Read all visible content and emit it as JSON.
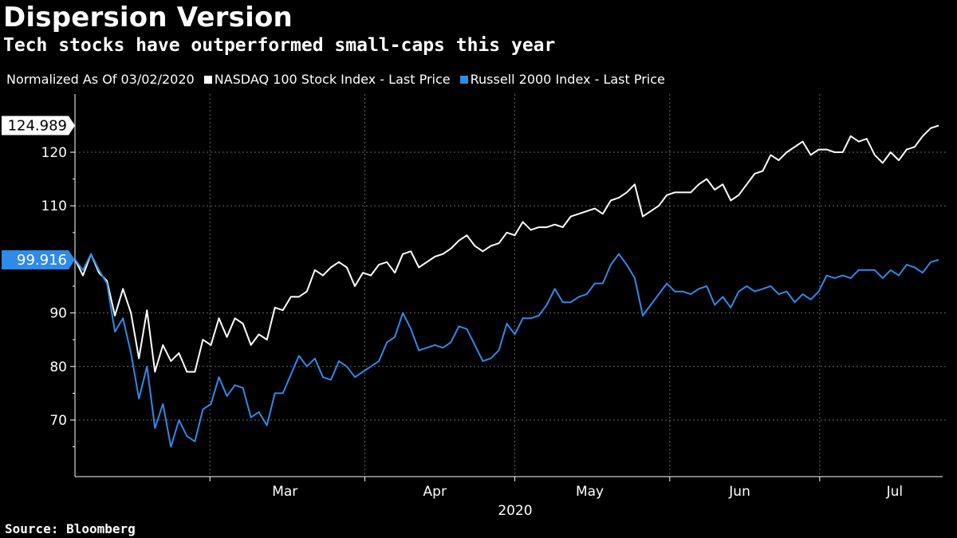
{
  "title": "Dispersion Version",
  "subtitle": "Tech stocks have outperformed small-caps this year",
  "legend": {
    "prefix": "Normalized As Of 03/02/2020",
    "series1": "NASDAQ 100 Stock Index - Last Price",
    "series2": "Russell 2000 Index - Last Price"
  },
  "source": "Source: Bloomberg",
  "colors": {
    "nasdaq": "#ffffff",
    "russell": "#2f8ae8",
    "grid": "#666666",
    "background": "#000000"
  },
  "chart_data": {
    "type": "line",
    "title": "Dispersion Version",
    "subtitle": "Tech stocks have outperformed small-caps this year",
    "xlabel": "2020",
    "ylabel": "",
    "x_start_date": "2020-02-03",
    "x_end_date": "2020-07-24",
    "x_month_labels": [
      {
        "label": "Mar",
        "date": "2020-03-16"
      },
      {
        "label": "Apr",
        "date": "2020-04-15"
      },
      {
        "label": "May",
        "date": "2020-05-16"
      },
      {
        "label": "Jun",
        "date": "2020-06-15"
      },
      {
        "label": "Jul",
        "date": "2020-07-16"
      }
    ],
    "x_month_boundaries": [
      "2020-03-01",
      "2020-04-01",
      "2020-05-01",
      "2020-06-01",
      "2020-07-01"
    ],
    "x_year_label": "2020",
    "ylim": [
      60,
      130
    ],
    "yticks": [
      70,
      80,
      90,
      110,
      120
    ],
    "grid": true,
    "last_values": {
      "nasdaq": "124.989",
      "russell": "99.916"
    },
    "series": [
      {
        "name": "NASDAQ 100 Stock Index - Last Price",
        "key": "nasdaq",
        "values": [
          100.0,
          97.0,
          101.0,
          97.5,
          96.0,
          89.5,
          94.5,
          90.0,
          81.5,
          90.5,
          79.0,
          84.0,
          81.0,
          82.5,
          79.0,
          79.0,
          85.0,
          84.0,
          89.0,
          85.5,
          89.0,
          88.0,
          84.0,
          86.0,
          85.0,
          91.0,
          90.5,
          93.0,
          93.0,
          94.0,
          98.0,
          97.0,
          98.5,
          99.5,
          98.5,
          95.0,
          97.5,
          97.0,
          99.0,
          99.5,
          97.5,
          101.0,
          101.5,
          98.5,
          99.5,
          100.5,
          101.0,
          102.0,
          103.5,
          104.5,
          102.5,
          101.5,
          102.5,
          103.0,
          105.0,
          104.5,
          107.0,
          105.5,
          106.0,
          106.0,
          106.5,
          106.0,
          108.0,
          108.5,
          109.0,
          109.5,
          108.5,
          111.0,
          111.5,
          112.5,
          114.0,
          108.0,
          109.0,
          110.0,
          112.0,
          112.5,
          112.5,
          112.5,
          114.0,
          115.0,
          113.0,
          114.0,
          111.0,
          112.0,
          114.0,
          116.0,
          116.5,
          119.5,
          118.5,
          120.0,
          121.0,
          122.0,
          119.5,
          120.5,
          120.5,
          120.0,
          120.0,
          123.0,
          122.0,
          122.5,
          119.5,
          118.0,
          120.0,
          118.5,
          120.5,
          121.0,
          123.0,
          124.5,
          124.989
        ]
      },
      {
        "name": "Russell 2000 Index - Last Price",
        "key": "russell",
        "values": [
          100.0,
          98.0,
          101.0,
          98.0,
          95.5,
          86.5,
          89.0,
          82.5,
          74.0,
          80.0,
          68.5,
          73.0,
          65.0,
          70.0,
          67.0,
          66.0,
          72.0,
          73.0,
          78.0,
          74.5,
          76.5,
          76.0,
          70.5,
          71.5,
          69.0,
          75.0,
          75.0,
          78.5,
          82.0,
          80.0,
          81.5,
          78.0,
          77.5,
          81.0,
          80.0,
          78.0,
          79.0,
          80.0,
          81.0,
          84.5,
          85.5,
          90.0,
          87.0,
          83.0,
          83.5,
          84.0,
          83.5,
          84.5,
          87.5,
          87.0,
          84.0,
          81.0,
          81.5,
          83.0,
          88.0,
          86.0,
          89.0,
          89.0,
          89.5,
          91.5,
          94.5,
          92.0,
          92.0,
          93.0,
          93.5,
          95.5,
          95.5,
          99.0,
          101.0,
          99.0,
          96.5,
          89.5,
          91.5,
          93.5,
          95.5,
          94.0,
          94.0,
          93.5,
          94.5,
          95.0,
          91.5,
          93.0,
          91.0,
          94.0,
          95.0,
          94.0,
          94.5,
          95.0,
          93.5,
          94.0,
          92.0,
          93.5,
          92.5,
          94.0,
          97.0,
          96.5,
          97.0,
          96.5,
          98.0,
          98.0,
          98.0,
          96.5,
          98.0,
          97.0,
          99.0,
          98.5,
          97.5,
          99.5,
          99.916
        ]
      }
    ]
  }
}
